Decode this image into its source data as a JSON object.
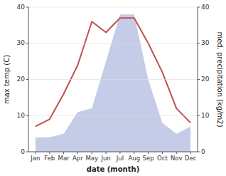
{
  "chart_data": {
    "type": "line",
    "xlabel": "date (month)",
    "ylabel": "max temp (C)",
    "y2label": "med. precipitation (kg/m2)",
    "categories": [
      "Jan",
      "Feb",
      "Mar",
      "Apr",
      "May",
      "Jun",
      "Jul",
      "Aug",
      "Sep",
      "Oct",
      "Nov",
      "Dec"
    ],
    "series": [
      {
        "type": "area",
        "axis": "y2",
        "color": "#c5cce8",
        "values": [
          4,
          4,
          5,
          11,
          12,
          25,
          38,
          38,
          20,
          8,
          5,
          7
        ]
      },
      {
        "type": "line",
        "color": "#c0504d",
        "values": [
          7,
          9,
          16,
          24,
          36,
          33,
          37,
          37,
          30,
          22,
          12,
          8
        ]
      }
    ],
    "ylim": [
      0,
      40
    ],
    "yticks": [
      0,
      10,
      20,
      30,
      40
    ],
    "y2lim": [
      0,
      40
    ],
    "y2ticks": [
      0,
      10,
      20,
      30,
      40
    ],
    "grid": true
  }
}
